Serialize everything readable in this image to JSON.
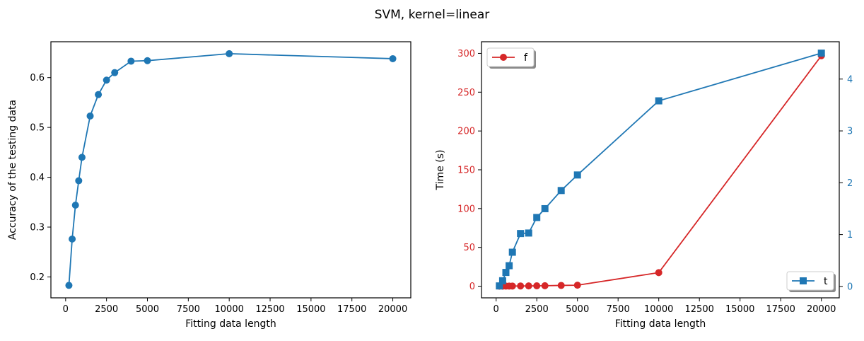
{
  "figure": {
    "suptitle": "SVM, kernel=linear"
  },
  "chart_data": [
    {
      "type": "line",
      "title": "",
      "xlabel": "Fitting data length",
      "ylabel": "Accuracy of the testing data",
      "xlim": [
        -900,
        21100
      ],
      "ylim": [
        0.158,
        0.672
      ],
      "xticks": [
        0,
        2500,
        5000,
        7500,
        10000,
        12500,
        15000,
        17500,
        20000
      ],
      "yticks": [
        0.2,
        0.3,
        0.4,
        0.5,
        0.6
      ],
      "grid": false,
      "series": [
        {
          "color": "#1f77b4",
          "marker": "circle",
          "x": [
            200,
            400,
            600,
            800,
            1000,
            1500,
            2000,
            2500,
            3000,
            4000,
            5000,
            10000,
            20000
          ],
          "y": [
            0.183,
            0.276,
            0.344,
            0.393,
            0.44,
            0.523,
            0.566,
            0.595,
            0.61,
            0.633,
            0.634,
            0.648,
            0.638
          ]
        }
      ]
    },
    {
      "type": "line",
      "title": "",
      "xlabel": "Fitting data length",
      "ylabel": "Time (s)",
      "xlim": [
        -900,
        21100
      ],
      "ylim": [
        -15,
        315
      ],
      "xticks": [
        0,
        2500,
        5000,
        7500,
        10000,
        12500,
        15000,
        17500,
        20000
      ],
      "yticks": [
        0,
        50,
        100,
        150,
        200,
        250,
        300
      ],
      "ylim_right": [
        -0.22,
        4.72
      ],
      "yticks_right": [
        0,
        1,
        2,
        3,
        4
      ],
      "grid": false,
      "series": [
        {
          "name": "f",
          "axis": "left",
          "color": "#d62728",
          "marker": "circle",
          "legend_position": "upper-left",
          "x": [
            200,
            400,
            600,
            800,
            1000,
            1500,
            2000,
            2500,
            3000,
            4000,
            5000,
            10000,
            20000
          ],
          "y": [
            0.0,
            0.0,
            0.1,
            0.1,
            0.2,
            0.3,
            0.4,
            0.5,
            0.6,
            1.0,
            1.3,
            17.5,
            297
          ]
        },
        {
          "name": "t",
          "axis": "right",
          "color": "#1f77b4",
          "marker": "square",
          "legend_position": "lower-right",
          "x": [
            200,
            400,
            600,
            800,
            1000,
            1500,
            2000,
            2500,
            3000,
            4000,
            5000,
            10000,
            20000
          ],
          "y": [
            0.01,
            0.11,
            0.27,
            0.4,
            0.66,
            1.02,
            1.03,
            1.33,
            1.5,
            1.85,
            2.15,
            3.58,
            4.5
          ]
        }
      ]
    }
  ]
}
